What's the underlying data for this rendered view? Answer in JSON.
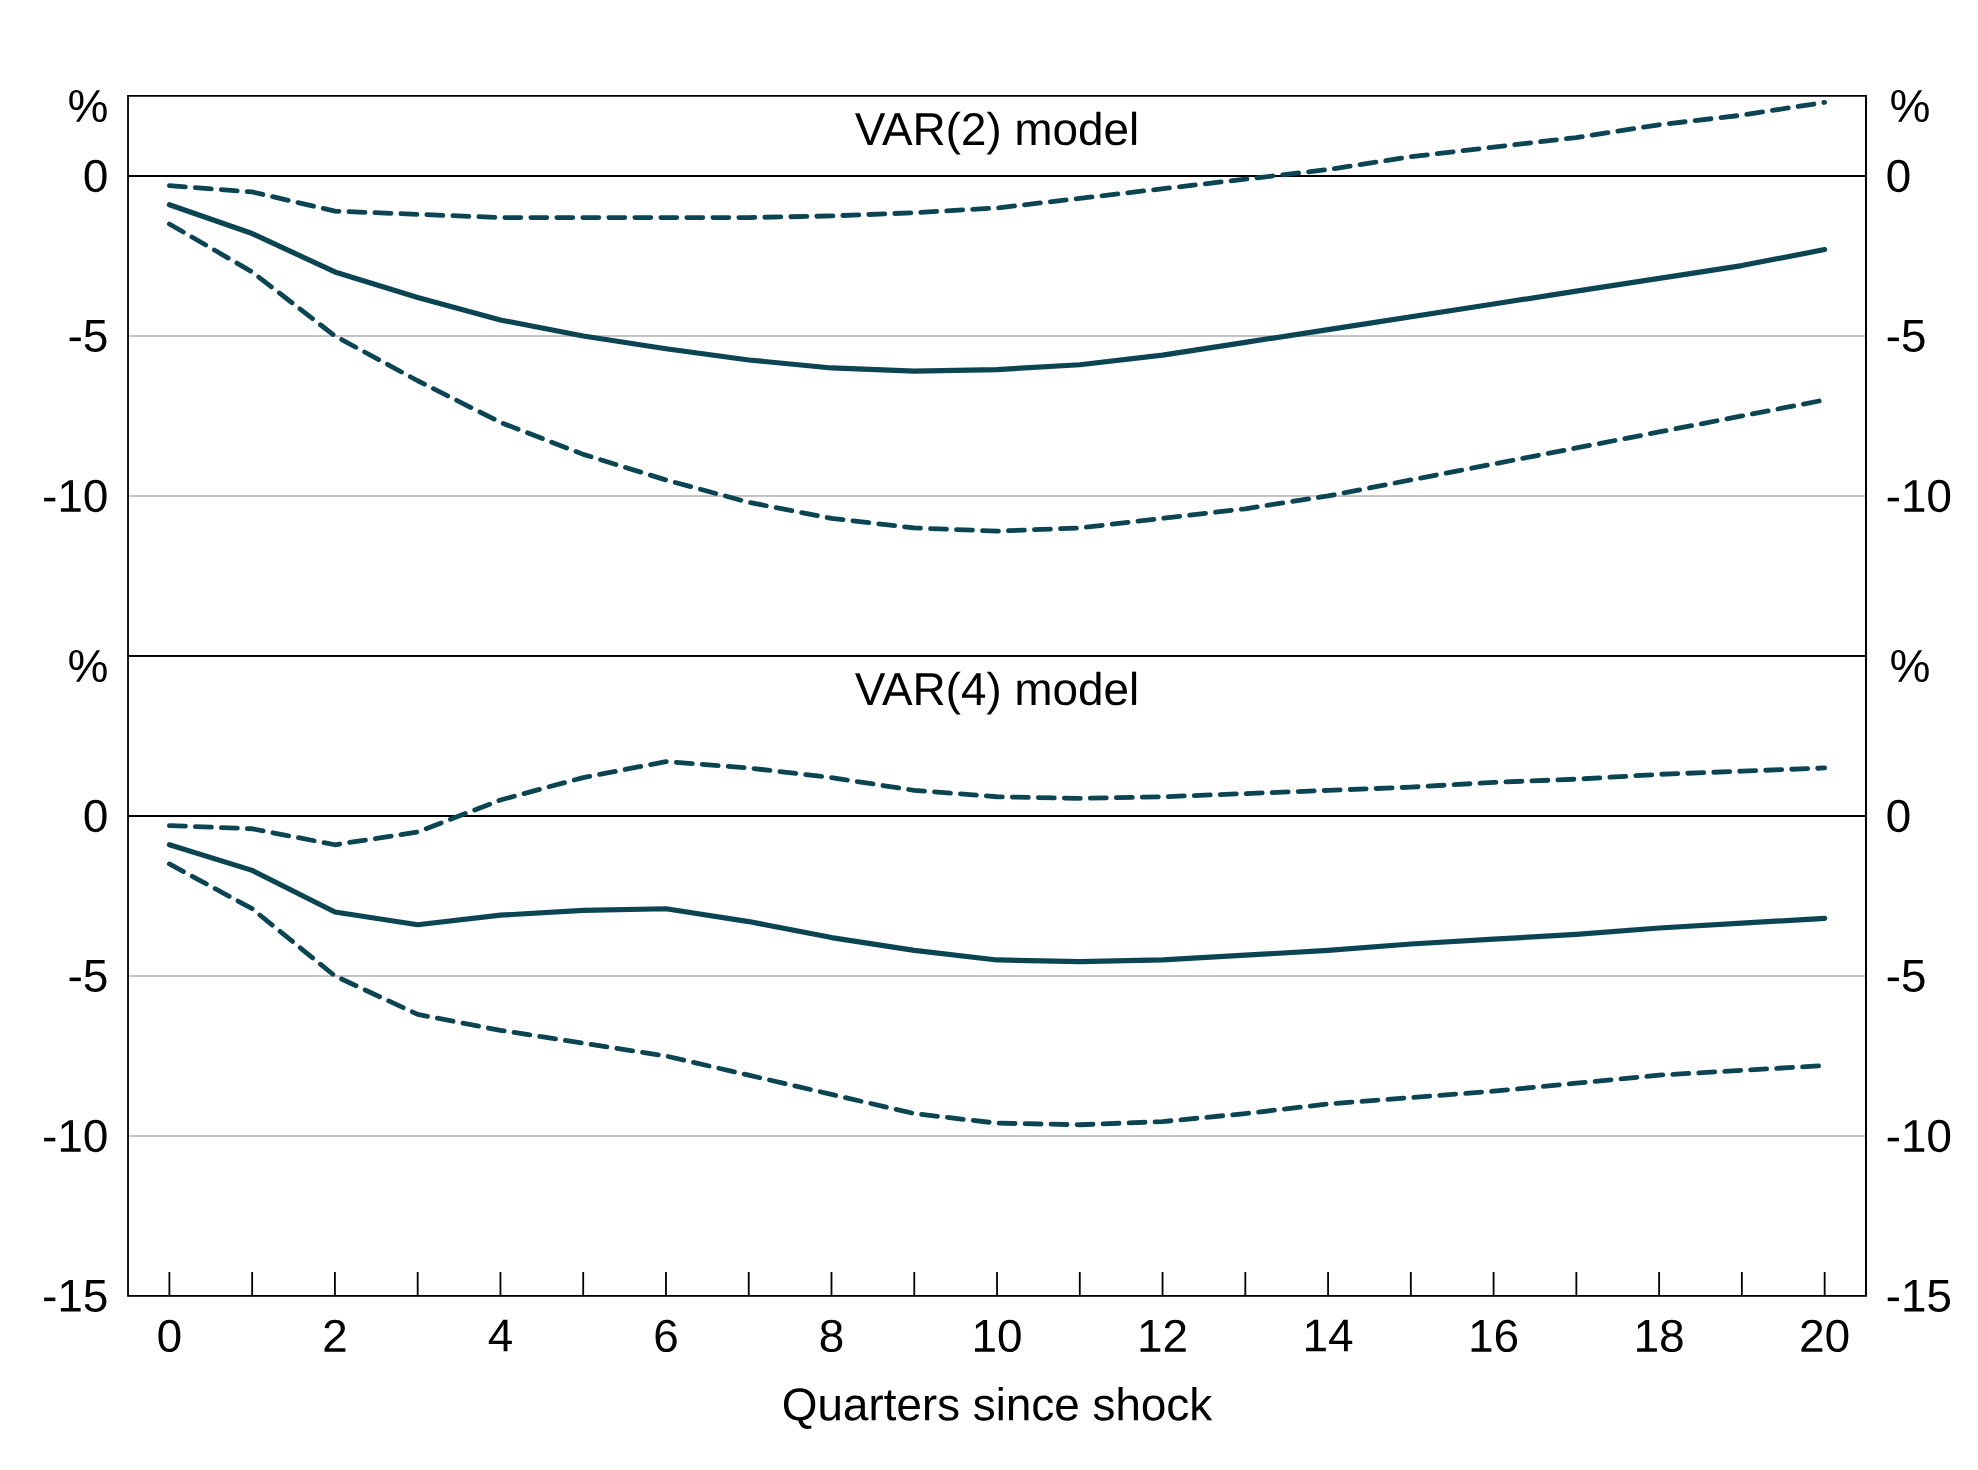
{
  "chart_data": [
    {
      "type": "line",
      "title": "VAR(2) model",
      "ylabel": "%",
      "y2label": "%",
      "xlim": [
        -0.5,
        20.5
      ],
      "ylim": [
        -15,
        2.5
      ],
      "yticks": [
        -10,
        -5,
        0
      ],
      "y2lim": [
        -15,
        2.5
      ],
      "y2ticks": [
        -10,
        -5,
        0
      ],
      "tick_labels": "y",
      "grid": "y",
      "x": [
        0,
        1,
        2,
        3,
        4,
        5,
        6,
        7,
        8,
        9,
        10,
        11,
        12,
        13,
        14,
        15,
        16,
        17,
        18,
        19,
        20
      ],
      "ref_lines": [
        {
          "axis": "y",
          "value": 0,
          "color": "#000000"
        }
      ],
      "series": [
        {
          "color": "#0b4452",
          "line_style": "solid",
          "values": [
            -0.9,
            -1.8,
            -3.0,
            -3.8,
            -4.5,
            -5.0,
            -5.4,
            -5.75,
            -6.0,
            -6.1,
            -6.05,
            -5.9,
            -5.6,
            -5.2,
            -4.8,
            -4.4,
            -4.0,
            -3.6,
            -3.2,
            -2.8,
            -2.3
          ]
        },
        {
          "color": "#0b4452",
          "line_style": "dashed",
          "values": [
            -0.3,
            -0.5,
            -1.1,
            -1.2,
            -1.3,
            -1.3,
            -1.3,
            -1.3,
            -1.25,
            -1.15,
            -1.0,
            -0.7,
            -0.4,
            -0.1,
            0.2,
            0.6,
            0.9,
            1.2,
            1.6,
            1.9,
            2.3
          ]
        },
        {
          "color": "#0b4452",
          "line_style": "dashed",
          "values": [
            -1.5,
            -3.0,
            -5.0,
            -6.4,
            -7.7,
            -8.7,
            -9.5,
            -10.2,
            -10.7,
            -11.0,
            -11.1,
            -11.0,
            -10.7,
            -10.4,
            -10.0,
            -9.5,
            -9.0,
            -8.5,
            -8.0,
            -7.5,
            -7.0
          ]
        }
      ]
    },
    {
      "type": "line",
      "title": "VAR(4) model",
      "xlabel": "Quarters since shock",
      "ylabel": "%",
      "y2label": "%",
      "xlim": [
        -0.5,
        20.5
      ],
      "ylim": [
        -15,
        5
      ],
      "yticks": [
        -15,
        -10,
        -5,
        0
      ],
      "y2lim": [
        -15,
        5
      ],
      "y2ticks": [
        -15,
        -10,
        -5,
        0
      ],
      "grid": "y",
      "xticks": [
        0,
        {
          "value": 1,
          "label": null
        },
        2,
        {
          "value": 3,
          "label": null
        },
        4,
        {
          "value": 5,
          "label": null
        },
        6,
        {
          "value": 7,
          "label": null
        },
        8,
        {
          "value": 9,
          "label": null
        },
        10,
        {
          "value": 11,
          "label": null
        },
        12,
        {
          "value": 13,
          "label": null
        },
        14,
        {
          "value": 15,
          "label": null
        },
        16,
        {
          "value": 17,
          "label": null
        },
        18,
        {
          "value": 19,
          "label": null
        },
        20
      ],
      "x": [
        0,
        1,
        2,
        3,
        4,
        5,
        6,
        7,
        8,
        9,
        10,
        11,
        12,
        13,
        14,
        15,
        16,
        17,
        18,
        19,
        20
      ],
      "ref_lines": [
        {
          "axis": "y",
          "value": 0,
          "color": "#000000"
        }
      ],
      "series": [
        {
          "color": "#0b4452",
          "line_style": "solid",
          "values": [
            -0.9,
            -1.7,
            -3.0,
            -3.4,
            -3.1,
            -2.95,
            -2.9,
            -3.3,
            -3.8,
            -4.2,
            -4.5,
            -4.55,
            -4.5,
            -4.35,
            -4.2,
            -4.0,
            -3.85,
            -3.7,
            -3.5,
            -3.35,
            -3.2
          ]
        },
        {
          "color": "#0b4452",
          "line_style": "dashed",
          "values": [
            -0.3,
            -0.4,
            -0.9,
            -0.5,
            0.5,
            1.2,
            1.7,
            1.5,
            1.2,
            0.8,
            0.6,
            0.55,
            0.6,
            0.7,
            0.8,
            0.9,
            1.05,
            1.15,
            1.3,
            1.4,
            1.5
          ]
        },
        {
          "color": "#0b4452",
          "line_style": "dashed",
          "values": [
            -1.5,
            -2.9,
            -5.0,
            -6.2,
            -6.7,
            -7.1,
            -7.5,
            -8.1,
            -8.7,
            -9.3,
            -9.6,
            -9.65,
            -9.55,
            -9.3,
            -9.0,
            -8.8,
            -8.6,
            -8.35,
            -8.1,
            -7.95,
            -7.8
          ]
        }
      ]
    }
  ]
}
